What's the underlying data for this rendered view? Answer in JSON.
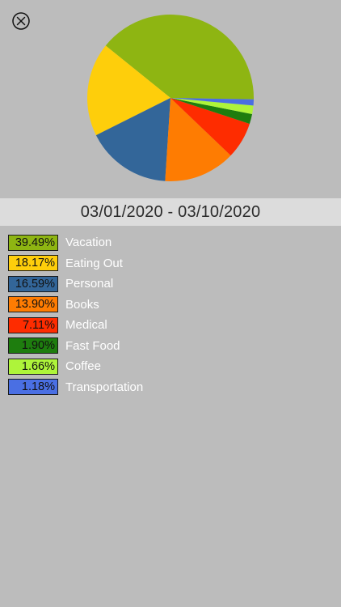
{
  "close_icon": "circle-x-icon",
  "date_range": "03/01/2020 - 03/10/2020",
  "chart_data": {
    "type": "pie",
    "title": "",
    "slices": [
      {
        "label": "Vacation",
        "value": 39.49,
        "percent_label": "39.49%",
        "color": "#8eb512"
      },
      {
        "label": "Eating Out",
        "value": 18.17,
        "percent_label": "18.17%",
        "color": "#fece0b"
      },
      {
        "label": "Personal",
        "value": 16.59,
        "percent_label": "16.59%",
        "color": "#336699"
      },
      {
        "label": "Books",
        "value": 13.9,
        "percent_label": "13.90%",
        "color": "#fe7c02"
      },
      {
        "label": "Medical",
        "value": 7.11,
        "percent_label": "7.11%",
        "color": "#fe2c00"
      },
      {
        "label": "Fast Food",
        "value": 1.9,
        "percent_label": "1.90%",
        "color": "#1e7d0e"
      },
      {
        "label": "Coffee",
        "value": 1.66,
        "percent_label": "1.66%",
        "color": "#aef43a"
      },
      {
        "label": "Transportation",
        "value": 1.18,
        "percent_label": "1.18%",
        "color": "#4a6fe3"
      }
    ]
  }
}
